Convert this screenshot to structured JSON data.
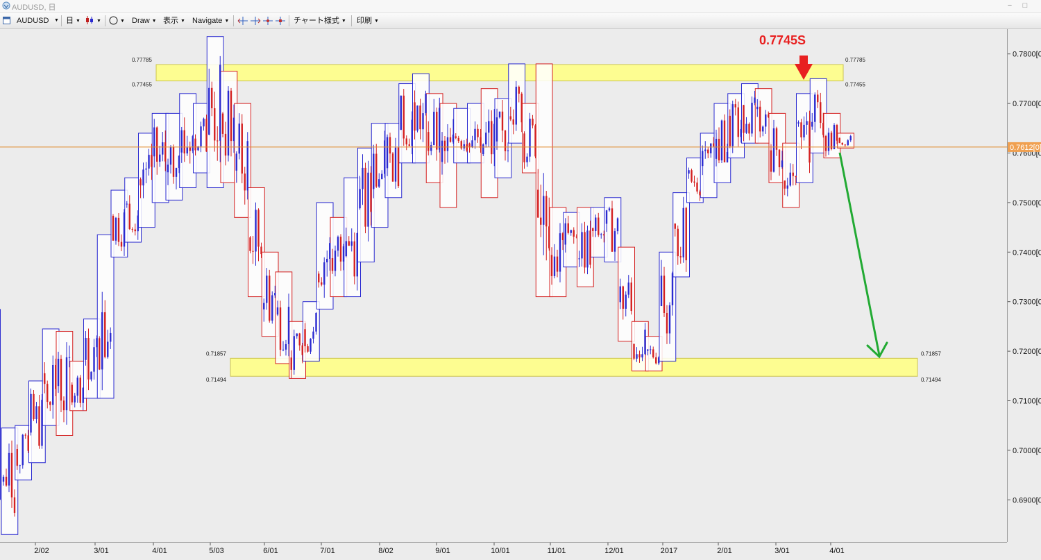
{
  "window": {
    "title": "AUDUSD, 日"
  },
  "toolbar": {
    "symbol": "AUDUSD",
    "timeframe": "日",
    "draw": "Draw",
    "display": "表示",
    "navigate": "Navigate",
    "chart_style": "チャート様式",
    "print": "印刷"
  },
  "chart_data": {
    "type": "candlestick",
    "symbol": "AUDUSD",
    "x_ticks": [
      "2/02",
      "3/01",
      "4/01",
      "5/03",
      "6/01",
      "7/01",
      "8/02",
      "9/01",
      "10/01",
      "11/01",
      "12/01",
      "2017",
      "2/01",
      "3/01",
      "4/01"
    ],
    "y_ticks": [
      "0.7800[0]",
      "0.7700[0]",
      "0.7600[0]",
      "0.7500[0]",
      "0.7400[0]",
      "0.7300[0]",
      "0.7200[0]",
      "0.7100[0]",
      "0.7000[0]",
      "0.6900[0]"
    ],
    "ylim": [
      0.6815,
      0.785
    ],
    "current_price": 0.7612,
    "current_price_label": "0.7612[0]",
    "annotation_text": "0.7745S",
    "resistance_zone": {
      "top": 0.77785,
      "bottom": 0.77455,
      "top_label": "0.77785",
      "bottom_label": "0.77455"
    },
    "support_zone": {
      "top": 0.71857,
      "bottom": 0.71494,
      "top_label": "0.71857",
      "bottom_label": "0.71494"
    },
    "colors": {
      "bull": "#2a2ad0",
      "bear": "#d42020",
      "zone": "#ffff88",
      "price_line": "#e08a2a",
      "arrow_down": "#e82020",
      "projection": "#22aa33"
    },
    "weekly_ranges": [
      {
        "high": 0.7045,
        "low": 0.683
      },
      {
        "high": 0.705,
        "low": 0.694
      },
      {
        "high": 0.714,
        "low": 0.6975
      },
      {
        "high": 0.7245,
        "low": 0.705
      },
      {
        "high": 0.724,
        "low": 0.703
      },
      {
        "high": 0.718,
        "low": 0.708
      },
      {
        "high": 0.7265,
        "low": 0.7105
      },
      {
        "high": 0.7435,
        "low": 0.7105
      },
      {
        "high": 0.7525,
        "low": 0.739
      },
      {
        "high": 0.755,
        "low": 0.742
      },
      {
        "high": 0.764,
        "low": 0.745
      },
      {
        "high": 0.768,
        "low": 0.75
      },
      {
        "high": 0.768,
        "low": 0.7505
      },
      {
        "high": 0.772,
        "low": 0.753
      },
      {
        "high": 0.77,
        "low": 0.756
      },
      {
        "high": 0.7835,
        "low": 0.753
      },
      {
        "high": 0.7765,
        "low": 0.754
      },
      {
        "high": 0.77,
        "low": 0.747
      },
      {
        "high": 0.753,
        "low": 0.731
      },
      {
        "high": 0.74,
        "low": 0.723
      },
      {
        "high": 0.736,
        "low": 0.7175
      },
      {
        "high": 0.726,
        "low": 0.7145
      },
      {
        "high": 0.73,
        "low": 0.718
      },
      {
        "high": 0.75,
        "low": 0.7285
      },
      {
        "high": 0.747,
        "low": 0.731
      },
      {
        "high": 0.755,
        "low": 0.731
      },
      {
        "high": 0.761,
        "low": 0.738
      },
      {
        "high": 0.766,
        "low": 0.745
      },
      {
        "high": 0.766,
        "low": 0.751
      },
      {
        "high": 0.774,
        "low": 0.758
      },
      {
        "high": 0.776,
        "low": 0.758
      },
      {
        "high": 0.772,
        "low": 0.754
      },
      {
        "high": 0.77,
        "low": 0.749
      },
      {
        "high": 0.769,
        "low": 0.758
      },
      {
        "high": 0.77,
        "low": 0.758
      },
      {
        "high": 0.773,
        "low": 0.751
      },
      {
        "high": 0.771,
        "low": 0.755
      },
      {
        "high": 0.778,
        "low": 0.762
      },
      {
        "high": 0.77,
        "low": 0.756
      },
      {
        "high": 0.778,
        "low": 0.731
      },
      {
        "high": 0.749,
        "low": 0.731
      },
      {
        "high": 0.748,
        "low": 0.737
      },
      {
        "high": 0.749,
        "low": 0.733
      },
      {
        "high": 0.749,
        "low": 0.739
      },
      {
        "high": 0.751,
        "low": 0.738
      },
      {
        "high": 0.741,
        "low": 0.722
      },
      {
        "high": 0.726,
        "low": 0.716
      },
      {
        "high": 0.723,
        "low": 0.716
      },
      {
        "high": 0.74,
        "low": 0.718
      },
      {
        "high": 0.752,
        "low": 0.735
      },
      {
        "high": 0.759,
        "low": 0.75
      },
      {
        "high": 0.764,
        "low": 0.751
      },
      {
        "high": 0.77,
        "low": 0.754
      },
      {
        "high": 0.772,
        "low": 0.759
      },
      {
        "high": 0.774,
        "low": 0.762
      },
      {
        "high": 0.773,
        "low": 0.762
      },
      {
        "high": 0.768,
        "low": 0.754
      },
      {
        "high": 0.762,
        "low": 0.749
      },
      {
        "high": 0.772,
        "low": 0.754
      },
      {
        "high": 0.775,
        "low": 0.76
      },
      {
        "high": 0.768,
        "low": 0.759
      },
      {
        "high": 0.764,
        "low": 0.761
      }
    ]
  }
}
